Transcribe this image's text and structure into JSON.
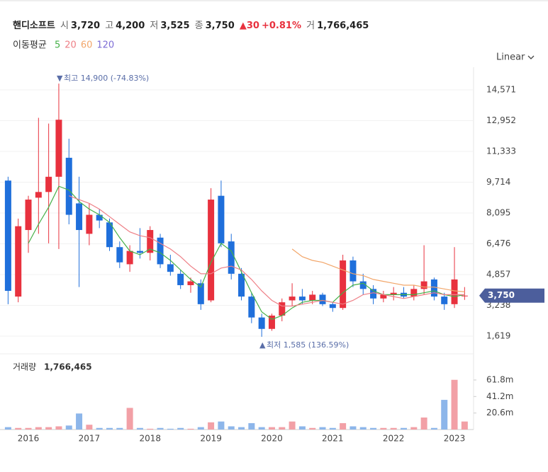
{
  "header": {
    "name": "핸디소프트",
    "open_label": "시",
    "open": "3,720",
    "high_label": "고",
    "high": "4,200",
    "low_label": "저",
    "low": "3,525",
    "close_label": "종",
    "close": "3,750",
    "change": "30",
    "change_pct": "+0.81%",
    "volume_label": "거",
    "volume": "1,766,465"
  },
  "chart_data": [
    {
      "type": "candlestick",
      "scale": "Linear",
      "categories": [
        null,
        null,
        "2016",
        null,
        null,
        null,
        null,
        null,
        "2017",
        null,
        null,
        null,
        null,
        null,
        "2018",
        null,
        null,
        null,
        null,
        null,
        "2019",
        null,
        null,
        null,
        null,
        null,
        "2020",
        null,
        null,
        null,
        null,
        null,
        "2021",
        null,
        null,
        null,
        null,
        null,
        "2022",
        null,
        null,
        null,
        null,
        null,
        "2023",
        null
      ],
      "open": [
        9800,
        3700,
        7200,
        8900,
        9200,
        10000,
        11000,
        8600,
        7000,
        8000,
        7600,
        6300,
        5400,
        6100,
        6000,
        6800,
        5400,
        4900,
        4300,
        4400,
        3500,
        9000,
        6600,
        4900,
        3700,
        2600,
        2000,
        2700,
        3500,
        3700,
        3500,
        3800,
        3300,
        3100,
        5600,
        4500,
        4100,
        3600,
        3800,
        3900,
        3700,
        4100,
        4600,
        3700,
        3300,
        3720
      ],
      "high": [
        10000,
        7800,
        9000,
        13100,
        12800,
        14900,
        12000,
        10000,
        8600,
        8300,
        7800,
        6600,
        6400,
        7300,
        7400,
        7000,
        5900,
        5100,
        4700,
        4600,
        9400,
        9800,
        7000,
        5200,
        3900,
        2800,
        2800,
        3600,
        4400,
        4100,
        4000,
        3900,
        3400,
        5900,
        5800,
        4900,
        4300,
        4000,
        4200,
        4200,
        4300,
        6400,
        4700,
        3900,
        6300,
        4200
      ],
      "low": [
        3300,
        3400,
        6000,
        7000,
        6500,
        6200,
        7500,
        4200,
        6400,
        7300,
        6100,
        5200,
        5000,
        5700,
        5600,
        5200,
        4800,
        4100,
        3900,
        3000,
        3400,
        6300,
        4600,
        3500,
        2300,
        1585,
        1900,
        2400,
        3200,
        3300,
        3300,
        3200,
        2900,
        3000,
        4200,
        3800,
        3300,
        3400,
        3500,
        3600,
        3500,
        3800,
        3500,
        3000,
        3100,
        3525
      ],
      "close": [
        4000,
        7400,
        8800,
        9200,
        10000,
        13000,
        8000,
        7200,
        8000,
        7700,
        6300,
        5500,
        6100,
        6000,
        7200,
        5400,
        5000,
        4300,
        4500,
        3300,
        8800,
        6500,
        4900,
        3700,
        2600,
        2000,
        2700,
        3400,
        3700,
        3500,
        3800,
        3300,
        3100,
        5600,
        4500,
        4100,
        3600,
        3800,
        3900,
        3700,
        4100,
        4500,
        3700,
        3300,
        4600,
        3750
      ],
      "up_color": "#e8313e",
      "down_color": "#1f6fdb",
      "ylim": [
        689,
        15575
      ],
      "yticks": [
        {
          "value": 1619,
          "label": "1,619"
        },
        {
          "value": 3238,
          "label": "3,238"
        },
        {
          "value": 4857,
          "label": "4,857"
        },
        {
          "value": 6476,
          "label": "6,476"
        },
        {
          "value": 8095,
          "label": "8,095"
        },
        {
          "value": 9714,
          "label": "9,714"
        },
        {
          "value": 11333,
          "label": "11,333"
        },
        {
          "value": 12952,
          "label": "12,952"
        },
        {
          "value": 14571,
          "label": "14,571"
        }
      ],
      "grid": true,
      "ma_label": "이동평균",
      "series": [
        {
          "name": "5",
          "color": "#45b048",
          "values": [
            null,
            null,
            6500,
            7500,
            8400,
            9500,
            9300,
            8700,
            8300,
            8000,
            7600,
            6800,
            6100,
            5900,
            6200,
            6000,
            5600,
            5100,
            4600,
            4200,
            5500,
            6500,
            6100,
            5000,
            3900,
            2900,
            2500,
            2700,
            3100,
            3400,
            3500,
            3500,
            3400,
            3900,
            4300,
            4400,
            4000,
            3800,
            3800,
            3800,
            3800,
            3900,
            4000,
            3800,
            3700,
            3800
          ]
        },
        {
          "name": "20",
          "color": "#ee7f86",
          "values": [
            null,
            null,
            null,
            null,
            null,
            null,
            9000,
            8800,
            8600,
            8300,
            7900,
            7500,
            7100,
            6900,
            6800,
            6500,
            6200,
            5800,
            5300,
            4900,
            4900,
            5200,
            5300,
            5100,
            4600,
            4000,
            3500,
            3200,
            3200,
            3300,
            3400,
            3500,
            3400,
            3300,
            3500,
            3800,
            3900,
            3800,
            3700,
            3600,
            3700,
            3800,
            3900,
            3800,
            3800,
            3800
          ]
        },
        {
          "name": "60",
          "color": "#f2a66a",
          "values": [
            null,
            null,
            null,
            null,
            null,
            null,
            null,
            null,
            null,
            null,
            null,
            null,
            null,
            null,
            null,
            null,
            null,
            null,
            null,
            null,
            null,
            null,
            null,
            null,
            null,
            null,
            null,
            null,
            6200,
            5800,
            5600,
            5500,
            5300,
            5100,
            4900,
            4800,
            4600,
            4500,
            4400,
            4300,
            4300,
            4200,
            4200,
            4100,
            4000,
            3950
          ]
        },
        {
          "name": "120",
          "color": "#7e6ed6",
          "values": [
            null,
            null,
            null,
            null,
            null,
            null,
            null,
            null,
            null,
            null,
            null,
            null,
            null,
            null,
            null,
            null,
            null,
            null,
            null,
            null,
            null,
            null,
            null,
            null,
            null,
            null,
            null,
            null,
            null,
            null,
            null,
            null,
            null,
            null,
            null,
            null,
            null,
            null,
            null,
            null,
            null,
            null,
            null,
            null,
            null,
            null
          ]
        }
      ],
      "max_annotation": "최고 14,900 (-74.83%)",
      "min_annotation": "최저 1,585 (136.59%)",
      "last_price": {
        "value": 3750,
        "label": "3,750"
      }
    },
    {
      "type": "bar",
      "title": "거래량",
      "last_volume": "1,766,465",
      "values": [
        3000000,
        2000000,
        2000000,
        3000000,
        3000000,
        4000000,
        5000000,
        20000000,
        6000000,
        2000000,
        2000000,
        2000000,
        27000000,
        2000000,
        1000000,
        2000000,
        1000000,
        2000000,
        1000000,
        3000000,
        9000000,
        10000000,
        4000000,
        3000000,
        8000000,
        3000000,
        3000000,
        3000000,
        10000000,
        4000000,
        2000000,
        3000000,
        2000000,
        8000000,
        4000000,
        3000000,
        2000000,
        2000000,
        2000000,
        2000000,
        3000000,
        15000000,
        2000000,
        37000000,
        62000000,
        10000000
      ],
      "up_color": "#f2a0a6",
      "down_color": "#8db6ea",
      "ylim": [
        0,
        90000000
      ],
      "yticks": [
        {
          "value": 20600000,
          "label": "20.6m"
        },
        {
          "value": 41200000,
          "label": "41.2m"
        },
        {
          "value": 61800000,
          "label": "61.8m"
        }
      ]
    }
  ]
}
